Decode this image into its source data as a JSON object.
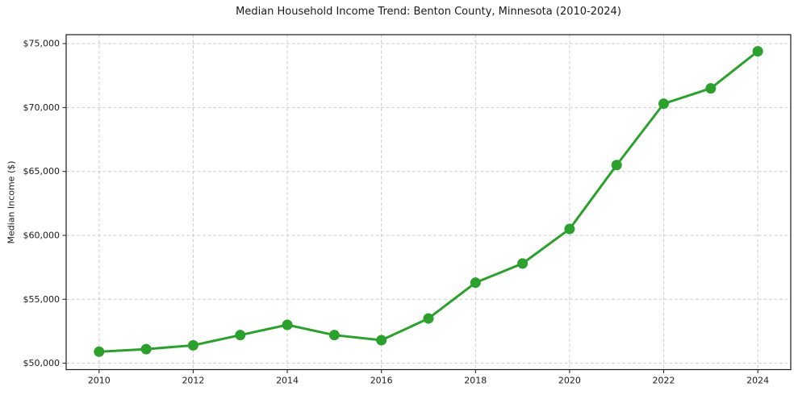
{
  "chart_data": {
    "type": "line",
    "title": "Median Household Income Trend: Benton County, Minnesota (2010-2024)",
    "xlabel": "",
    "ylabel": "Median Income ($)",
    "x": [
      2010,
      2011,
      2012,
      2013,
      2014,
      2015,
      2016,
      2017,
      2018,
      2019,
      2020,
      2021,
      2022,
      2023,
      2024
    ],
    "series": [
      {
        "name": "Median Household Income",
        "values": [
          50900,
          51100,
          51400,
          52200,
          53000,
          52200,
          51800,
          53500,
          56300,
          57800,
          60500,
          65500,
          70300,
          71500,
          74400
        ]
      }
    ],
    "x_ticks": [
      {
        "value": 2010,
        "label": "2010"
      },
      {
        "value": 2012,
        "label": "2012"
      },
      {
        "value": 2014,
        "label": "2014"
      },
      {
        "value": 2016,
        "label": "2016"
      },
      {
        "value": 2018,
        "label": "2018"
      },
      {
        "value": 2020,
        "label": "2020"
      },
      {
        "value": 2022,
        "label": "2022"
      },
      {
        "value": 2024,
        "label": "2024"
      }
    ],
    "y_ticks": [
      {
        "value": 50000,
        "label": "$50,000"
      },
      {
        "value": 55000,
        "label": "$55,000"
      },
      {
        "value": 60000,
        "label": "$60,000"
      },
      {
        "value": 65000,
        "label": "$65,000"
      },
      {
        "value": 70000,
        "label": "$70,000"
      },
      {
        "value": 75000,
        "label": "$75,000"
      }
    ],
    "xlim": [
      2009.3,
      2024.7
    ],
    "ylim": [
      49500,
      75700
    ],
    "grid": true,
    "grid_style": "dashed",
    "legend": false,
    "line_color": "#2ca02c",
    "marker": "circle",
    "marker_size": 6.5,
    "line_width": 3,
    "grid_color": "#cdcdcd",
    "spine_color": "#1a1a1a",
    "text_color": "#1a1a1a",
    "background": "#ffffff"
  }
}
